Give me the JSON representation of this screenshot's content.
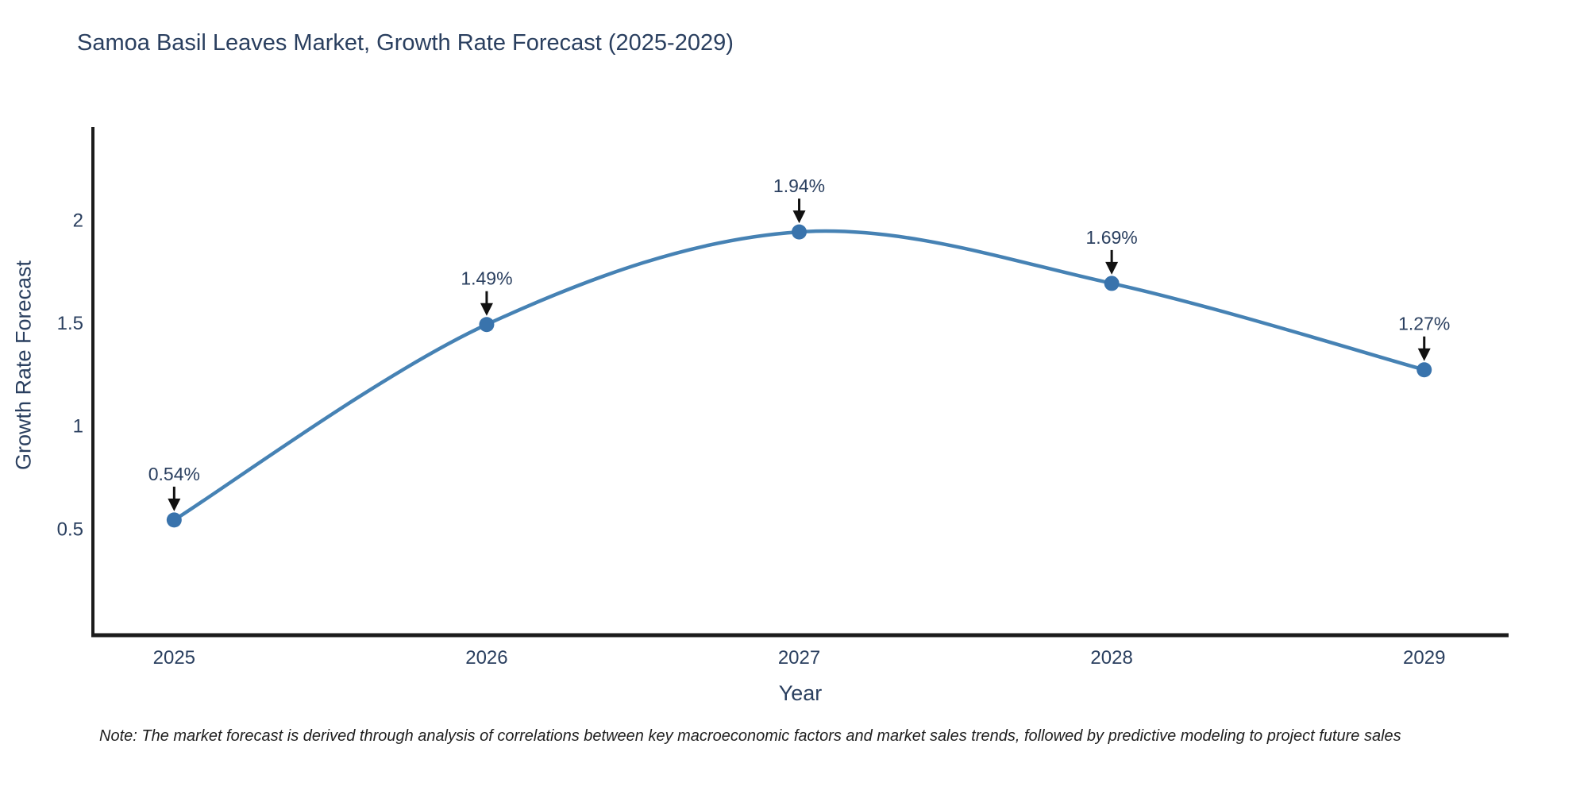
{
  "title": "Samoa Basil Leaves Market, Growth Rate Forecast (2025-2029)",
  "note": "Note: The market forecast is derived through analysis of correlations between key macroeconomic factors and market sales trends, followed by predictive modeling to project future sales",
  "colors": {
    "text": "#2a3f5f",
    "line": "#4682b4",
    "marker": "#3973ac",
    "axis": "#1c1c1c",
    "arrow": "#111111",
    "note_text": "#1f1f1f",
    "background": "#ffffff"
  },
  "chart_data": {
    "type": "line",
    "title": "Samoa Basil Leaves Market, Growth Rate Forecast (2025-2029)",
    "xlabel": "Year",
    "ylabel": "Growth Rate Forecast",
    "x": [
      2025,
      2026,
      2027,
      2028,
      2029
    ],
    "values": [
      0.54,
      1.49,
      1.94,
      1.69,
      1.27
    ],
    "point_labels": [
      "0.54%",
      "1.49%",
      "1.94%",
      "1.69%",
      "1.27%"
    ],
    "xticks": [
      2025,
      2026,
      2027,
      2028,
      2029
    ],
    "yticks": [
      0.5,
      1,
      1.5,
      2
    ],
    "xlim": [
      2024.74,
      2029.27
    ],
    "ylim": [
      -0.02,
      2.45
    ],
    "line_shape": "spline",
    "grid": false,
    "legend": false
  }
}
